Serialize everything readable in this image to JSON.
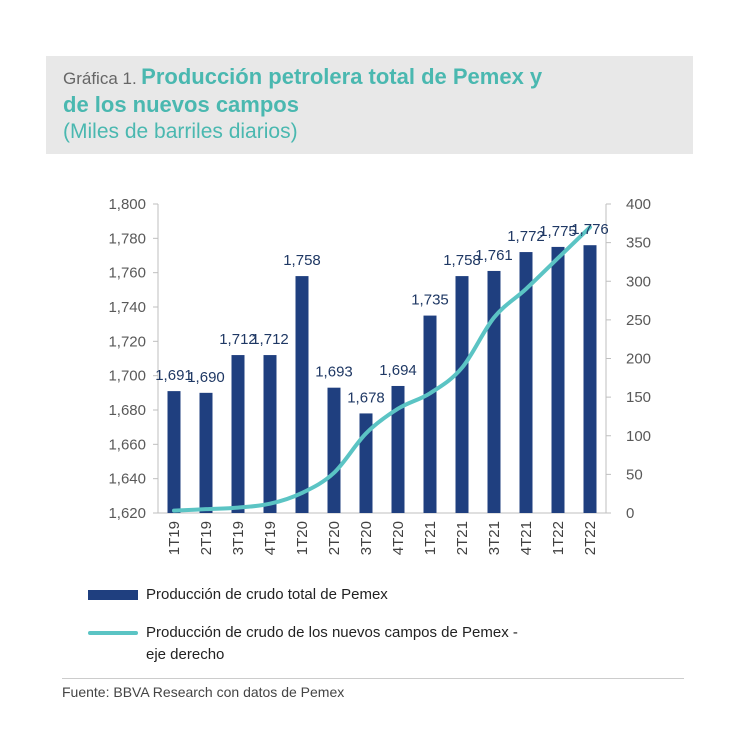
{
  "header": {
    "prefix": "Gráfica 1.",
    "title_line1": "Producción petrolera total de Pemex y",
    "title_line2": "de los nuevos campos",
    "subtitle": "(Miles de barriles diarios)"
  },
  "chart_data": {
    "type": "bar",
    "categories": [
      "1T19",
      "2T19",
      "3T19",
      "4T19",
      "1T20",
      "2T20",
      "3T20",
      "4T20",
      "1T21",
      "2T21",
      "3T21",
      "4T21",
      "1T22",
      "2T22"
    ],
    "series": [
      {
        "name": "Producción de crudo total de Pemex",
        "type": "bar",
        "axis": "left",
        "color": "#1f3f7f",
        "values": [
          1691,
          1690,
          1712,
          1712,
          1758,
          1693,
          1678,
          1694,
          1735,
          1758,
          1761,
          1772,
          1775,
          1776
        ],
        "labels": [
          "1,691",
          "1,690",
          "1,712",
          "1,712",
          "1,758",
          "1,693",
          "1,678",
          "1,694",
          "1,735",
          "1,758",
          "1,761",
          "1,772",
          "1,775",
          "1,776"
        ]
      },
      {
        "name": "Producción de crudo de los nuevos campos de Pemex - eje derecho",
        "type": "line",
        "axis": "right",
        "color": "#5bc4c4",
        "values": [
          3,
          5,
          7,
          12,
          26,
          52,
          103,
          135,
          155,
          188,
          253,
          290,
          330,
          370
        ]
      }
    ],
    "y_left": {
      "min": 1620,
      "max": 1800,
      "ticks": [
        1620,
        1640,
        1660,
        1680,
        1700,
        1720,
        1740,
        1760,
        1780,
        1800
      ],
      "tick_labels": [
        "1,620",
        "1,640",
        "1,660",
        "1,680",
        "1,700",
        "1,720",
        "1,740",
        "1,760",
        "1,780",
        "1,800"
      ]
    },
    "y_right": {
      "min": 0,
      "max": 400,
      "ticks": [
        0,
        50,
        100,
        150,
        200,
        250,
        300,
        350,
        400
      ],
      "tick_labels": [
        "0",
        "50",
        "100",
        "150",
        "200",
        "250",
        "300",
        "350",
        "400"
      ]
    },
    "grid": false,
    "legend_position": "bottom"
  },
  "legend": {
    "bar_label": "Producción de crudo total de Pemex",
    "line_label_1": "Producción de crudo de los nuevos campos de Pemex -",
    "line_label_2": "eje derecho"
  },
  "source": "Fuente: BBVA Research con datos de Pemex"
}
